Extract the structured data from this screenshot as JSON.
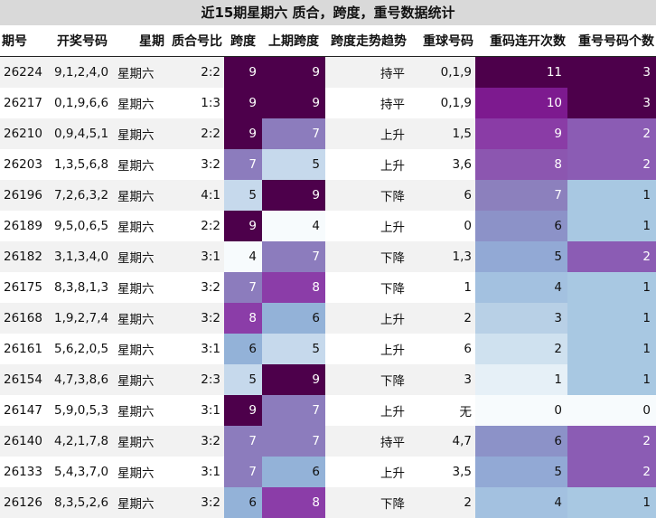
{
  "title": "近15期星期六 质合，跨度，重号数据统计",
  "chart_data": {
    "type": "table",
    "columns": [
      "期号",
      "开奖号码",
      "星期",
      "质合号比",
      "跨度",
      "上期跨度",
      "跨度走势趋势",
      "重球号码",
      "重码连开次数",
      "重号号码个数"
    ],
    "rows": [
      [
        "26224",
        "9,1,2,4,0",
        "星期六",
        "2:2",
        "9",
        "9",
        "持平",
        "0,1,9",
        "11",
        "3"
      ],
      [
        "26217",
        "0,1,9,6,6",
        "星期六",
        "1:3",
        "9",
        "9",
        "持平",
        "0,1,9",
        "10",
        "3"
      ],
      [
        "26210",
        "0,9,4,5,1",
        "星期六",
        "2:2",
        "9",
        "7",
        "上升",
        "1,5",
        "9",
        "2"
      ],
      [
        "26203",
        "1,3,5,6,8",
        "星期六",
        "3:2",
        "7",
        "5",
        "上升",
        "3,6",
        "8",
        "2"
      ],
      [
        "26196",
        "7,2,6,3,2",
        "星期六",
        "4:1",
        "5",
        "9",
        "下降",
        "6",
        "7",
        "1"
      ],
      [
        "26189",
        "9,5,0,6,5",
        "星期六",
        "2:2",
        "9",
        "4",
        "上升",
        "0",
        "6",
        "1"
      ],
      [
        "26182",
        "3,1,3,4,0",
        "星期六",
        "3:1",
        "4",
        "7",
        "下降",
        "1,3",
        "5",
        "2"
      ],
      [
        "26175",
        "8,3,8,1,3",
        "星期六",
        "3:2",
        "7",
        "8",
        "下降",
        "1",
        "4",
        "1"
      ],
      [
        "26168",
        "1,9,2,7,4",
        "星期六",
        "3:2",
        "8",
        "6",
        "上升",
        "2",
        "3",
        "1"
      ],
      [
        "26161",
        "5,6,2,0,5",
        "星期六",
        "3:1",
        "6",
        "5",
        "上升",
        "6",
        "2",
        "1"
      ],
      [
        "26154",
        "4,7,3,8,6",
        "星期六",
        "2:3",
        "5",
        "9",
        "下降",
        "3",
        "1",
        "1"
      ],
      [
        "26147",
        "5,9,0,5,3",
        "星期六",
        "3:1",
        "9",
        "7",
        "上升",
        "无",
        "0",
        "0"
      ],
      [
        "26140",
        "4,2,1,7,8",
        "星期六",
        "3:2",
        "7",
        "7",
        "持平",
        "4,7",
        "6",
        "2"
      ],
      [
        "26133",
        "5,4,3,7,0",
        "星期六",
        "3:1",
        "7",
        "6",
        "上升",
        "3,5",
        "5",
        "2"
      ],
      [
        "26126",
        "8,3,5,2,6",
        "星期六",
        "3:2",
        "6",
        "8",
        "下降",
        "2",
        "4",
        "1"
      ]
    ]
  },
  "heat_colors": {
    "span": {
      "4": "#f7fbfd",
      "5": "#c6d9ec",
      "6": "#93b2d8",
      "7": "#8c7cbd",
      "8": "#8b3da8",
      "9": "#4d004b"
    },
    "repeat_runs": {
      "0": "#f7fbfd",
      "1": "#e6f0f7",
      "2": "#cfe1ef",
      "3": "#b8d0e6",
      "4": "#a3c1e0",
      "5": "#92a9d5",
      "6": "#8c92c8",
      "7": "#8c80bd",
      "8": "#8c56b0",
      "9": "#8a3ca6",
      "10": "#7d1a8f",
      "11": "#4d004b"
    },
    "repeat_count": {
      "0": "#f7fbfd",
      "1": "#a8c8e2",
      "2": "#8b5cb4",
      "3": "#4d004b"
    }
  }
}
